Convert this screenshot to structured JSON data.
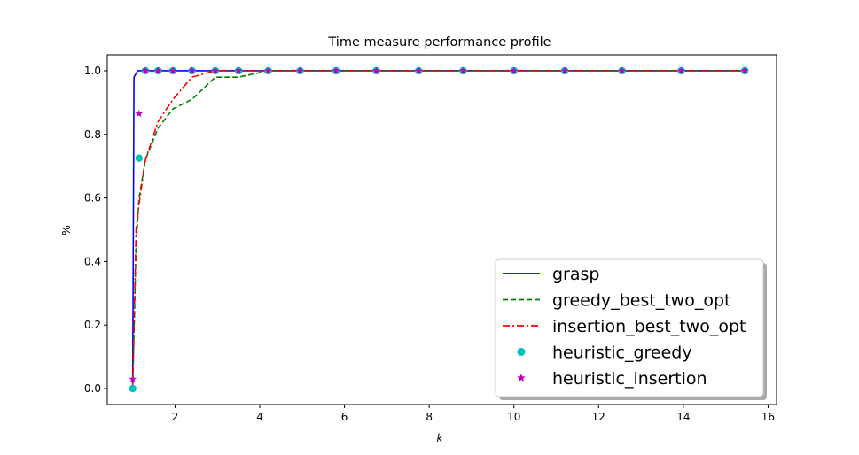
{
  "chart_data": {
    "type": "line",
    "title": "Time measure performance profile",
    "xlabel": "k",
    "ylabel": "%",
    "xlim": [
      0.4,
      16.2
    ],
    "ylim": [
      -0.05,
      1.05
    ],
    "xticks": [
      2,
      4,
      6,
      8,
      10,
      12,
      14,
      16
    ],
    "yticks": [
      0.0,
      0.2,
      0.4,
      0.6,
      0.8,
      1.0
    ],
    "xtick_labels": [
      "2",
      "4",
      "6",
      "8",
      "10",
      "12",
      "14",
      "16"
    ],
    "ytick_labels": [
      "0.0",
      "0.2",
      "0.4",
      "0.6",
      "0.8",
      "1.0"
    ],
    "grid": false,
    "legend_position": "lower-right",
    "series": [
      {
        "name": "grasp",
        "style": "solid",
        "color": "#0000ff",
        "points": [
          [
            1.0,
            0.0
          ],
          [
            1.03,
            0.98
          ],
          [
            1.12,
            1.0
          ],
          [
            1.3,
            1.0
          ],
          [
            1.6,
            1.0
          ],
          [
            1.95,
            1.0
          ],
          [
            2.4,
            1.0
          ],
          [
            2.95,
            1.0
          ],
          [
            3.5,
            1.0
          ],
          [
            4.2,
            1.0
          ],
          [
            4.95,
            1.0
          ],
          [
            5.8,
            1.0
          ],
          [
            6.75,
            1.0
          ],
          [
            7.75,
            1.0
          ],
          [
            8.8,
            1.0
          ],
          [
            10.0,
            1.0
          ],
          [
            11.2,
            1.0
          ],
          [
            12.55,
            1.0
          ],
          [
            13.95,
            1.0
          ],
          [
            15.45,
            1.0
          ]
        ]
      },
      {
        "name": "greedy_best_two_opt",
        "style": "dashed",
        "color": "#008000",
        "points": [
          [
            1.0,
            0.0
          ],
          [
            1.08,
            0.45
          ],
          [
            1.15,
            0.6
          ],
          [
            1.3,
            0.72
          ],
          [
            1.6,
            0.82
          ],
          [
            1.95,
            0.88
          ],
          [
            2.4,
            0.91
          ],
          [
            2.95,
            0.98
          ],
          [
            3.5,
            0.98
          ],
          [
            4.2,
            1.0
          ],
          [
            4.95,
            1.0
          ],
          [
            5.8,
            1.0
          ],
          [
            6.75,
            1.0
          ],
          [
            7.75,
            1.0
          ],
          [
            8.8,
            1.0
          ],
          [
            10.0,
            1.0
          ],
          [
            11.2,
            1.0
          ],
          [
            12.55,
            1.0
          ],
          [
            13.95,
            1.0
          ],
          [
            15.45,
            1.0
          ]
        ]
      },
      {
        "name": "insertion_best_two_opt",
        "style": "dashdot",
        "color": "#ff0000",
        "points": [
          [
            1.0,
            0.0
          ],
          [
            1.08,
            0.5
          ],
          [
            1.15,
            0.58
          ],
          [
            1.3,
            0.72
          ],
          [
            1.6,
            0.84
          ],
          [
            1.95,
            0.91
          ],
          [
            2.4,
            0.98
          ],
          [
            2.95,
            1.0
          ],
          [
            3.5,
            1.0
          ],
          [
            4.2,
            1.0
          ],
          [
            4.95,
            1.0
          ],
          [
            5.8,
            1.0
          ],
          [
            6.75,
            1.0
          ],
          [
            7.75,
            1.0
          ],
          [
            8.8,
            1.0
          ],
          [
            10.0,
            1.0
          ],
          [
            11.2,
            1.0
          ],
          [
            12.55,
            1.0
          ],
          [
            13.95,
            1.0
          ],
          [
            15.45,
            1.0
          ]
        ]
      },
      {
        "name": "heuristic_greedy",
        "style": "marker-circle",
        "color": "#00bfbf",
        "points": [
          [
            1.0,
            0.0
          ],
          [
            1.15,
            0.725
          ],
          [
            1.3,
            1.0
          ],
          [
            1.6,
            1.0
          ],
          [
            1.95,
            1.0
          ],
          [
            2.4,
            1.0
          ],
          [
            2.95,
            1.0
          ],
          [
            3.5,
            1.0
          ],
          [
            4.2,
            1.0
          ],
          [
            4.95,
            1.0
          ],
          [
            5.8,
            1.0
          ],
          [
            6.75,
            1.0
          ],
          [
            7.75,
            1.0
          ],
          [
            8.8,
            1.0
          ],
          [
            10.0,
            1.0
          ],
          [
            11.2,
            1.0
          ],
          [
            12.55,
            1.0
          ],
          [
            13.95,
            1.0
          ],
          [
            15.45,
            1.0
          ]
        ]
      },
      {
        "name": "heuristic_insertion",
        "style": "marker-star",
        "color": "#bf00bf",
        "points": [
          [
            1.0,
            0.03
          ],
          [
            1.15,
            0.865
          ],
          [
            1.3,
            1.0
          ],
          [
            1.6,
            1.0
          ],
          [
            1.95,
            1.0
          ],
          [
            2.4,
            1.0
          ],
          [
            2.95,
            1.0
          ],
          [
            3.5,
            1.0
          ],
          [
            4.2,
            1.0
          ],
          [
            4.95,
            1.0
          ],
          [
            5.8,
            1.0
          ],
          [
            6.75,
            1.0
          ],
          [
            7.75,
            1.0
          ],
          [
            8.8,
            1.0
          ],
          [
            10.0,
            1.0
          ],
          [
            11.2,
            1.0
          ],
          [
            12.55,
            1.0
          ],
          [
            13.95,
            1.0
          ],
          [
            15.45,
            1.0
          ]
        ]
      }
    ]
  }
}
